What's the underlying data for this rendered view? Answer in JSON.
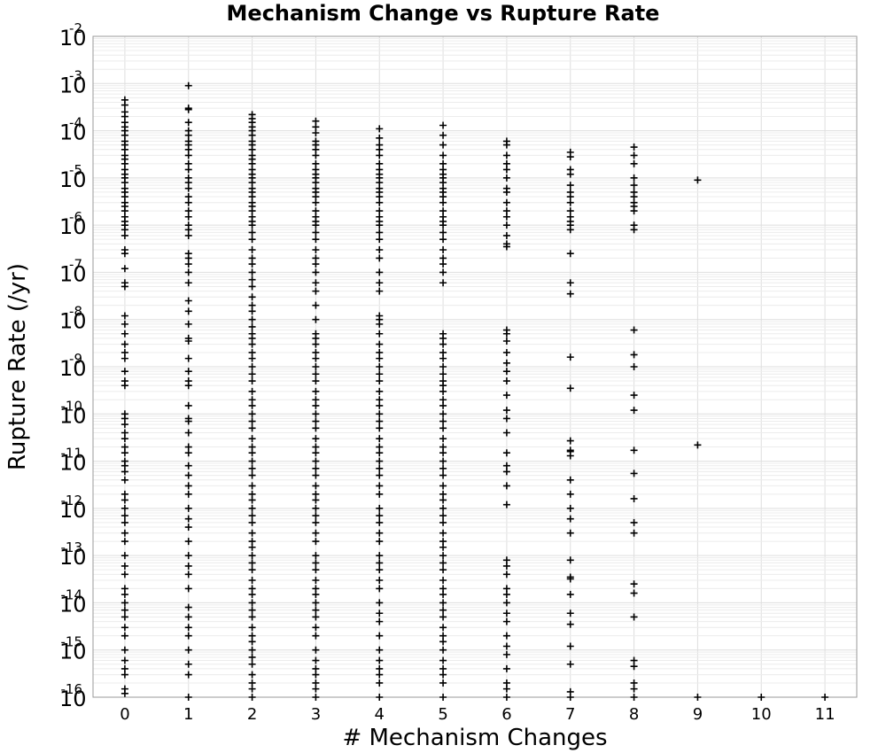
{
  "chart_data": {
    "type": "scatter",
    "title": "Mechanism Change vs Rupture Rate",
    "xlabel": "# Mechanism Changes",
    "ylabel": "Rupture Rate (/yr)",
    "x_ticks": [
      "0",
      "1",
      "2",
      "3",
      "4",
      "5",
      "6",
      "7",
      "8",
      "9",
      "10",
      "11"
    ],
    "xlim": [
      -0.5,
      11.5
    ],
    "yscale": "log",
    "ylim": [
      1e-16,
      0.01
    ],
    "y_tick_base": "10",
    "y_tick_exponents": [
      "-16",
      "-15",
      "-14",
      "-13",
      "-12",
      "-11",
      "-10",
      "-9",
      "-8",
      "-7",
      "-6",
      "-5",
      "-4",
      "-3",
      "-2"
    ],
    "grid": true,
    "marker": "+",
    "color": "#000000",
    "points": [
      {
        "x": 0,
        "y": [
          0.00045,
          0.00035,
          0.00025,
          0.0002,
          0.00015,
          0.00012,
          0.0001,
          8e-05,
          6e-05,
          5e-05,
          4e-05,
          3e-05,
          2.5e-05,
          2e-05,
          1.5e-05,
          1.2e-05,
          1e-05,
          8e-06,
          6e-06,
          5e-06,
          4e-06,
          3e-06,
          2.5e-06,
          2e-06,
          1.5e-06,
          1.2e-06,
          1e-06,
          8e-07,
          6e-07,
          3e-07,
          2.5e-07,
          1.2e-07,
          6e-08,
          5e-08,
          1.2e-08,
          8e-09,
          5e-09,
          3e-09,
          2e-09,
          1.5e-09,
          8e-10,
          5e-10,
          4e-10,
          1e-10,
          8e-11,
          6e-11,
          4e-11,
          3e-11,
          2e-11,
          1.5e-11,
          1e-11,
          8e-12,
          6e-12,
          4e-12,
          2e-12,
          1.5e-12,
          1e-12,
          7e-13,
          5e-13,
          3e-13,
          2e-13,
          1e-13,
          6e-14,
          4e-14,
          2e-14,
          1.5e-14,
          1e-14,
          7e-15,
          5e-15,
          3e-15,
          2e-15,
          1e-15,
          6e-16,
          4e-16,
          3e-16,
          1.5e-16,
          1.2e-16
        ]
      },
      {
        "x": 1,
        "y": [
          0.0009,
          0.0003,
          0.00028,
          0.00015,
          0.0001,
          8e-05,
          6e-05,
          5e-05,
          4e-05,
          3e-05,
          2e-05,
          1.5e-05,
          1e-05,
          8e-06,
          6e-06,
          4e-06,
          3e-06,
          2e-06,
          1.5e-06,
          1e-06,
          8e-07,
          6e-07,
          2.5e-07,
          2e-07,
          1.5e-07,
          1e-07,
          6e-08,
          2.5e-08,
          1.5e-08,
          8e-09,
          4e-09,
          3.5e-09,
          1.5e-09,
          8e-10,
          5e-10,
          4e-10,
          1.5e-10,
          8e-11,
          7e-11,
          4e-11,
          2e-11,
          1.5e-11,
          8e-12,
          5e-12,
          3e-12,
          2e-12,
          1e-12,
          6e-13,
          4e-13,
          2e-13,
          1e-13,
          6e-14,
          4e-14,
          2e-14,
          8e-15,
          5e-15,
          3e-15,
          2e-15,
          1e-15,
          5e-16,
          3e-16,
          1e-16
        ]
      },
      {
        "x": 2,
        "y": [
          0.00022,
          0.00018,
          0.00015,
          0.00012,
          0.0001,
          8e-05,
          6e-05,
          5e-05,
          4e-05,
          3e-05,
          2.5e-05,
          2e-05,
          1.5e-05,
          1.2e-05,
          1e-05,
          8e-06,
          6e-06,
          5e-06,
          4e-06,
          3e-06,
          2.5e-06,
          2e-06,
          1.5e-06,
          1.2e-06,
          1e-06,
          7e-07,
          5e-07,
          3e-07,
          2e-07,
          1.5e-07,
          1e-07,
          7e-08,
          5e-08,
          3e-08,
          2e-08,
          1.5e-08,
          1e-08,
          7e-09,
          5e-09,
          4e-09,
          3e-09,
          2e-09,
          1.5e-09,
          1e-09,
          7e-10,
          5e-10,
          3e-10,
          2e-10,
          1.5e-10,
          1e-10,
          7e-11,
          5e-11,
          3e-11,
          2e-11,
          1.5e-11,
          1e-11,
          7e-12,
          5e-12,
          3e-12,
          2e-12,
          1.5e-12,
          1e-12,
          7e-13,
          5e-13,
          3e-13,
          2e-13,
          1.5e-13,
          1e-13,
          7e-14,
          5e-14,
          3e-14,
          2e-14,
          1.5e-14,
          1e-14,
          7e-15,
          5e-15,
          3e-15,
          2e-15,
          1.5e-15,
          1e-15,
          7e-16,
          5e-16,
          3e-16,
          2e-16,
          1.5e-16,
          1e-16
        ]
      },
      {
        "x": 3,
        "y": [
          0.00016,
          0.00012,
          9e-05,
          6e-05,
          5e-05,
          4e-05,
          3e-05,
          2e-05,
          1.5e-05,
          1.2e-05,
          1e-05,
          8e-06,
          6e-06,
          5e-06,
          4e-06,
          3e-06,
          2e-06,
          1.5e-06,
          1.2e-06,
          1e-06,
          7e-07,
          5e-07,
          3e-07,
          2e-07,
          1.5e-07,
          1e-07,
          6e-08,
          4e-08,
          2e-08,
          1e-08,
          5e-09,
          4e-09,
          3e-09,
          2e-09,
          1.5e-09,
          1e-09,
          7e-10,
          5e-10,
          3e-10,
          2e-10,
          1.5e-10,
          1e-10,
          7e-11,
          5e-11,
          3e-11,
          2e-11,
          1.5e-11,
          1e-11,
          7e-12,
          5e-12,
          3e-12,
          2e-12,
          1.5e-12,
          1e-12,
          7e-13,
          5e-13,
          3e-13,
          2e-13,
          1e-13,
          7e-14,
          5e-14,
          3e-14,
          2e-14,
          1.5e-14,
          1e-14,
          7e-15,
          5e-15,
          3e-15,
          2e-15,
          1e-15,
          6e-16,
          4e-16,
          3e-16,
          2e-16,
          1.5e-16,
          1e-16
        ]
      },
      {
        "x": 4,
        "y": [
          0.00011,
          7e-05,
          5e-05,
          4e-05,
          3e-05,
          2e-05,
          1.5e-05,
          1.2e-05,
          1e-05,
          8e-06,
          6e-06,
          5e-06,
          4e-06,
          3e-06,
          2e-06,
          1.5e-06,
          1.2e-06,
          1e-06,
          7e-07,
          5e-07,
          3e-07,
          2e-07,
          1e-07,
          6e-08,
          4e-08,
          1.2e-08,
          1e-08,
          8e-09,
          5e-09,
          3e-09,
          2e-09,
          1.5e-09,
          1e-09,
          7e-10,
          5e-10,
          3e-10,
          2e-10,
          1.5e-10,
          1e-10,
          7e-11,
          5e-11,
          3e-11,
          2e-11,
          1.5e-11,
          1e-11,
          7e-12,
          5e-12,
          3e-12,
          2e-12,
          1e-12,
          7e-13,
          5e-13,
          3e-13,
          2e-13,
          1e-13,
          7e-14,
          5e-14,
          3e-14,
          2e-14,
          1e-14,
          6e-15,
          4e-15,
          2e-15,
          1e-15,
          6e-16,
          4e-16,
          3e-16,
          2e-16,
          1e-16
        ]
      },
      {
        "x": 5,
        "y": [
          0.00013,
          8e-05,
          5e-05,
          3e-05,
          2e-05,
          1.5e-05,
          1.2e-05,
          1e-05,
          8e-06,
          6e-06,
          5e-06,
          4e-06,
          3e-06,
          2e-06,
          1.5e-06,
          1.2e-06,
          1e-06,
          7e-07,
          5e-07,
          3e-07,
          2e-07,
          1.5e-07,
          1e-07,
          6e-08,
          5e-09,
          4e-09,
          3e-09,
          2e-09,
          1.5e-09,
          1e-09,
          7e-10,
          5e-10,
          4e-10,
          3e-10,
          2e-10,
          1.5e-10,
          1e-10,
          7e-11,
          5e-11,
          3e-11,
          2e-11,
          1.5e-11,
          1e-11,
          7e-12,
          5e-12,
          3e-12,
          2e-12,
          1.5e-12,
          1e-12,
          7e-13,
          5e-13,
          3e-13,
          2e-13,
          1.5e-13,
          1e-13,
          7e-14,
          5e-14,
          3e-14,
          2e-14,
          1.5e-14,
          1e-14,
          7e-15,
          5e-15,
          3e-15,
          2e-15,
          1.5e-15,
          1e-15,
          6e-16,
          4e-16,
          3e-16,
          2e-16,
          1e-16
        ]
      },
      {
        "x": 6,
        "y": [
          6e-05,
          5e-05,
          3e-05,
          2e-05,
          1.5e-05,
          1e-05,
          6e-06,
          5e-06,
          3e-06,
          2e-06,
          1.5e-06,
          1e-06,
          6e-07,
          4e-07,
          3.5e-07,
          6e-09,
          5e-09,
          3.5e-09,
          2e-09,
          1.2e-09,
          8e-10,
          5e-10,
          2.5e-10,
          1.2e-10,
          8e-11,
          4e-11,
          1.5e-11,
          8e-12,
          6e-12,
          3e-12,
          1.2e-12,
          8e-14,
          6e-14,
          4e-14,
          2e-14,
          1.5e-14,
          1e-14,
          6e-15,
          4e-15,
          2e-15,
          1.2e-15,
          8e-16,
          4e-16,
          2e-16,
          1.5e-16,
          1e-16
        ]
      },
      {
        "x": 7,
        "y": [
          3.5e-05,
          2.8e-05,
          1.5e-05,
          1.2e-05,
          7e-06,
          5e-06,
          4e-06,
          3e-06,
          2e-06,
          1.5e-06,
          1.2e-06,
          1e-06,
          8e-07,
          2.5e-07,
          6e-08,
          3.5e-08,
          1.6e-09,
          3.5e-10,
          2.7e-11,
          1.7e-11,
          1.6e-11,
          1.3e-11,
          4e-12,
          2e-12,
          1e-12,
          6e-13,
          3e-13,
          8e-14,
          3.5e-14,
          3.2e-14,
          1.5e-14,
          6e-15,
          3.5e-15,
          1.2e-15,
          5e-16,
          1.3e-16,
          1e-16
        ]
      },
      {
        "x": 8,
        "y": [
          4.5e-05,
          3e-05,
          2e-05,
          1e-05,
          7e-06,
          5e-06,
          4e-06,
          3e-06,
          2.5e-06,
          2e-06,
          1e-06,
          8e-07,
          6e-09,
          1.8e-09,
          1e-09,
          2.5e-10,
          1.2e-10,
          1.7e-11,
          5.5e-12,
          1.6e-12,
          5e-13,
          3e-13,
          2.5e-14,
          1.6e-14,
          5e-15,
          6e-16,
          4.5e-16,
          2e-16,
          1.5e-16,
          1e-16
        ]
      },
      {
        "x": 9,
        "y": [
          9e-06,
          2.2e-11,
          1e-16
        ]
      },
      {
        "x": 10,
        "y": [
          1e-16
        ]
      },
      {
        "x": 11,
        "y": [
          1e-16
        ]
      }
    ]
  }
}
